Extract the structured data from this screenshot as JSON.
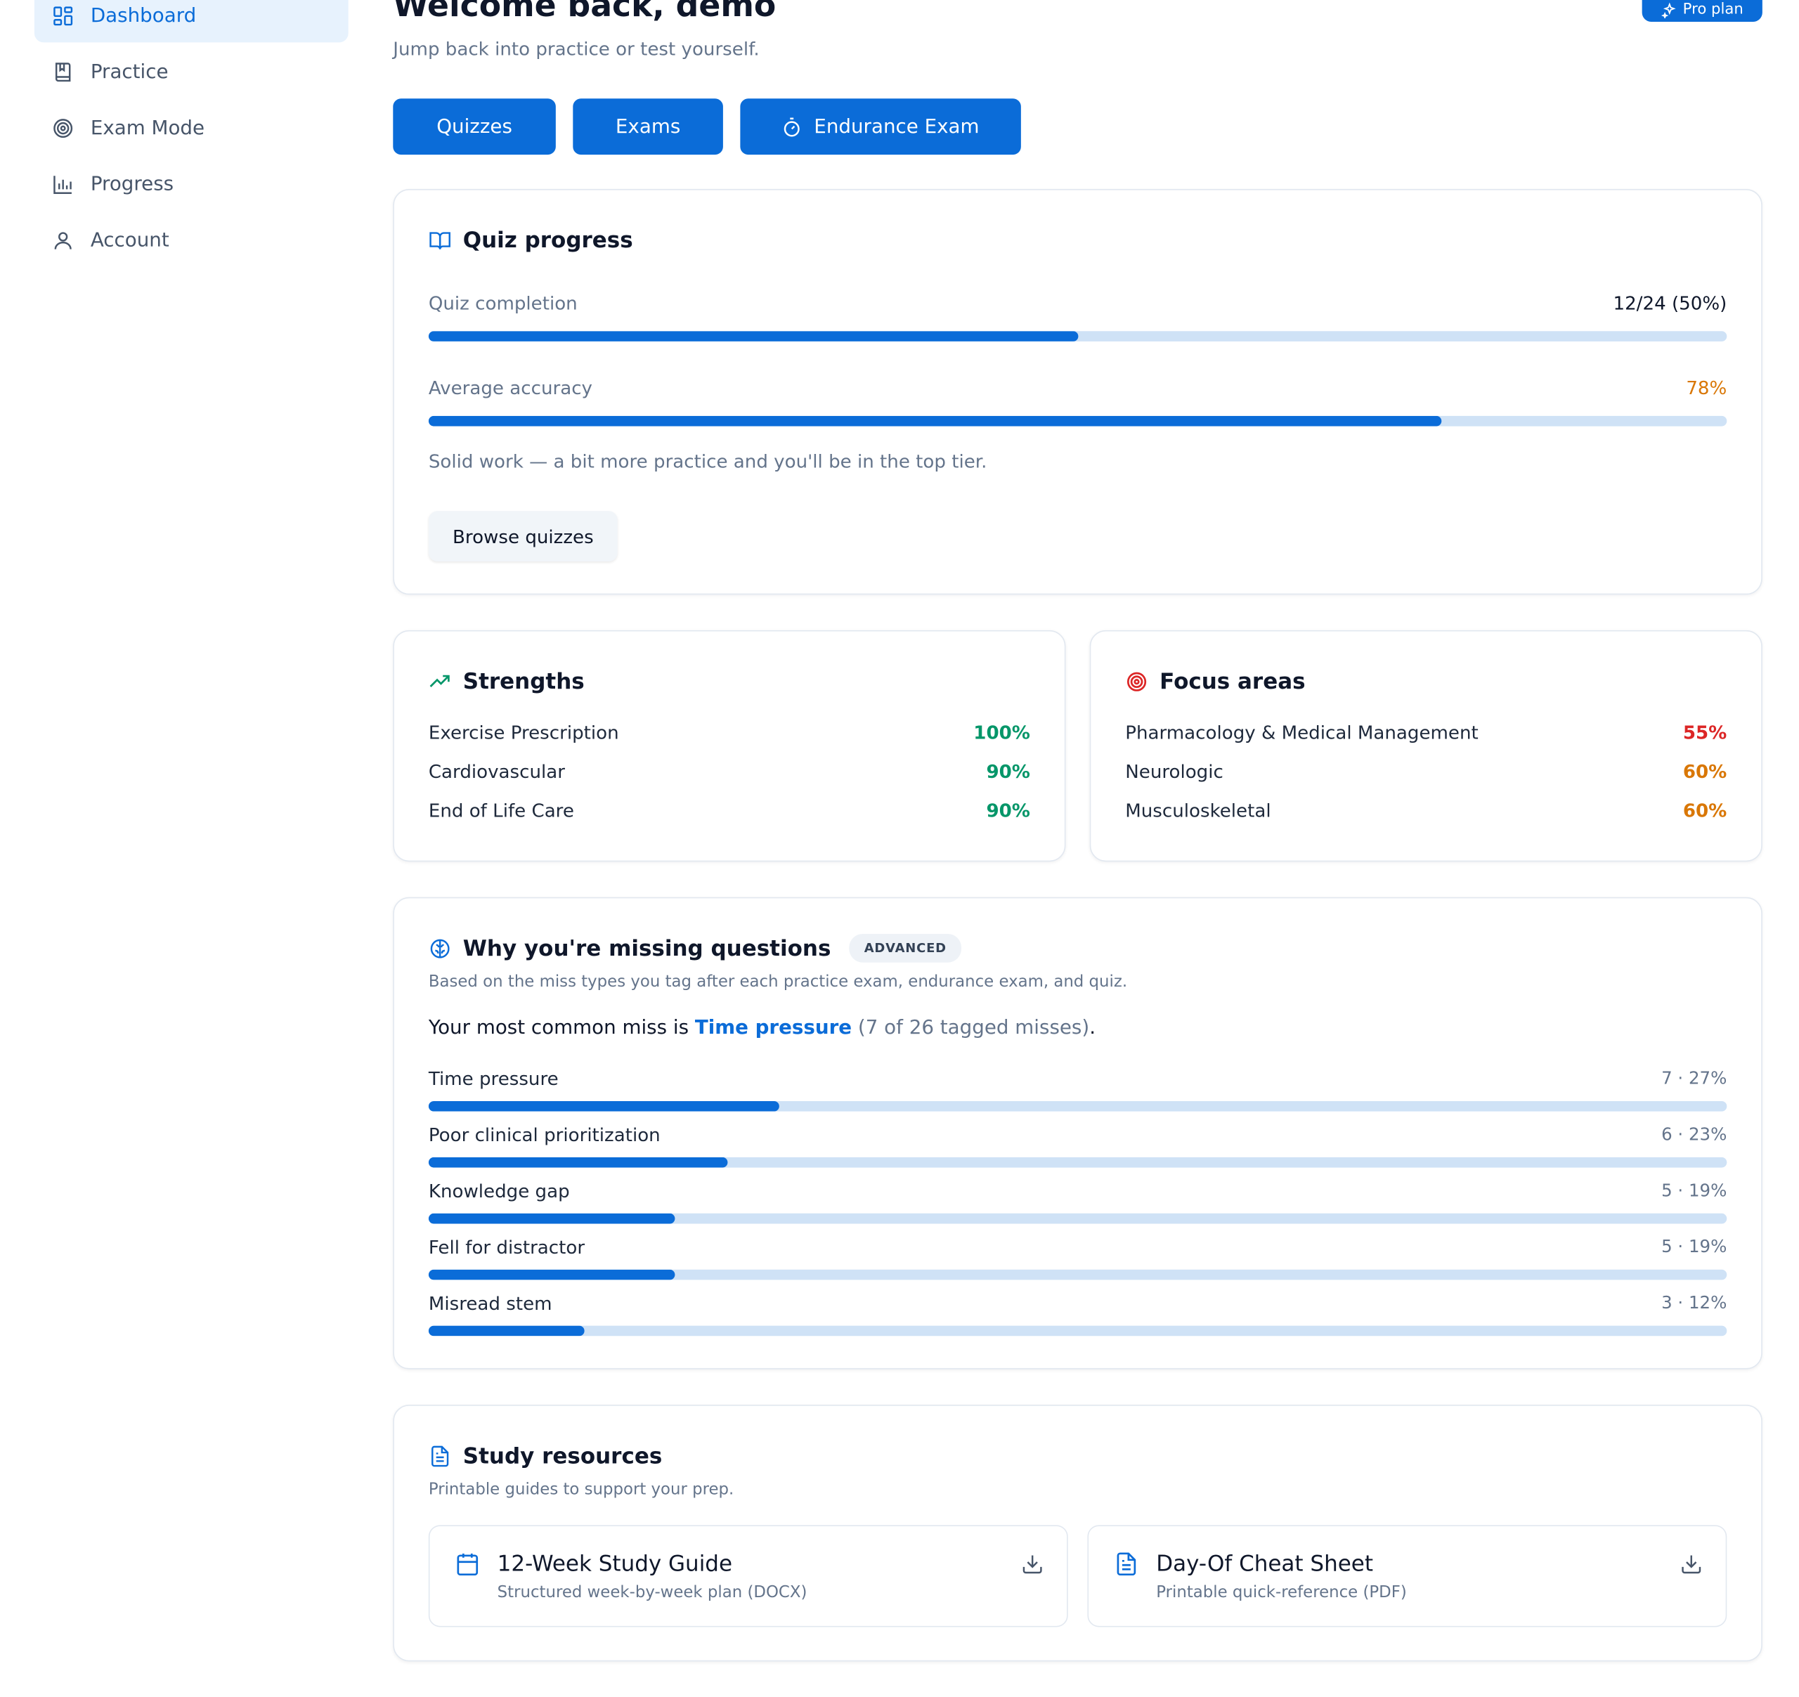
{
  "sidebar": {
    "items": [
      {
        "label": "Dashboard",
        "icon": "dashboard-icon",
        "active": true
      },
      {
        "label": "Practice",
        "icon": "book-icon"
      },
      {
        "label": "Exam Mode",
        "icon": "target-icon"
      },
      {
        "label": "Progress",
        "icon": "bar-chart-icon"
      },
      {
        "label": "Account",
        "icon": "user-icon"
      }
    ]
  },
  "header": {
    "title": "Welcome back, demo",
    "subtitle": "Jump back into practice or test yourself.",
    "plan_badge": "Pro plan"
  },
  "actions": {
    "quizzes": "Quizzes",
    "exams": "Exams",
    "endurance": "Endurance Exam"
  },
  "quiz_progress": {
    "title": "Quiz progress",
    "completion_label": "Quiz completion",
    "completion_value": "12/24 (50%)",
    "completion_fraction": 0.5,
    "accuracy_label": "Average accuracy",
    "accuracy_value": "78%",
    "accuracy_fraction": 0.78,
    "message": "Solid work — a bit more practice and you'll be in the top tier.",
    "browse_label": "Browse quizzes"
  },
  "strengths": {
    "title": "Strengths",
    "items": [
      {
        "name": "Exercise Prescription",
        "value": "100%"
      },
      {
        "name": "Cardiovascular",
        "value": "90%"
      },
      {
        "name": "End of Life Care",
        "value": "90%"
      }
    ]
  },
  "focus": {
    "title": "Focus areas",
    "items": [
      {
        "name": "Pharmacology & Medical Management",
        "value": "55%"
      },
      {
        "name": "Neurologic",
        "value": "60%"
      },
      {
        "name": "Musculoskeletal",
        "value": "60%"
      }
    ]
  },
  "missing": {
    "title": "Why you're missing questions",
    "badge": "ADVANCED",
    "subtitle": "Based on the miss types you tag after each practice exam, endurance exam, and quiz.",
    "summary_prefix": "Your most common miss is ",
    "summary_highlight": "Time pressure",
    "summary_detail": " (7 of 26 tagged misses)",
    "summary_end": ".",
    "items": [
      {
        "label": "Time pressure",
        "count": "7 · 27%",
        "fraction": 0.27
      },
      {
        "label": "Poor clinical prioritization",
        "count": "6 · 23%",
        "fraction": 0.23
      },
      {
        "label": "Knowledge gap",
        "count": "5 · 19%",
        "fraction": 0.19
      },
      {
        "label": "Fell for distractor",
        "count": "5 · 19%",
        "fraction": 0.19
      },
      {
        "label": "Misread stem",
        "count": "3 · 12%",
        "fraction": 0.12
      }
    ]
  },
  "resources": {
    "title": "Study resources",
    "subtitle": "Printable guides to support your prep.",
    "items": [
      {
        "title": "12-Week Study Guide",
        "subtitle": "Structured week-by-week plan (DOCX)",
        "icon": "calendar-icon"
      },
      {
        "title": "Day-Of Cheat Sheet",
        "subtitle": "Printable quick-reference (PDF)",
        "icon": "document-icon"
      }
    ]
  },
  "colors": {
    "accent": "#0b6cd8",
    "track": "#cfe2f6",
    "success": "#059669",
    "danger": "#dc2626",
    "warning": "#d97706"
  }
}
